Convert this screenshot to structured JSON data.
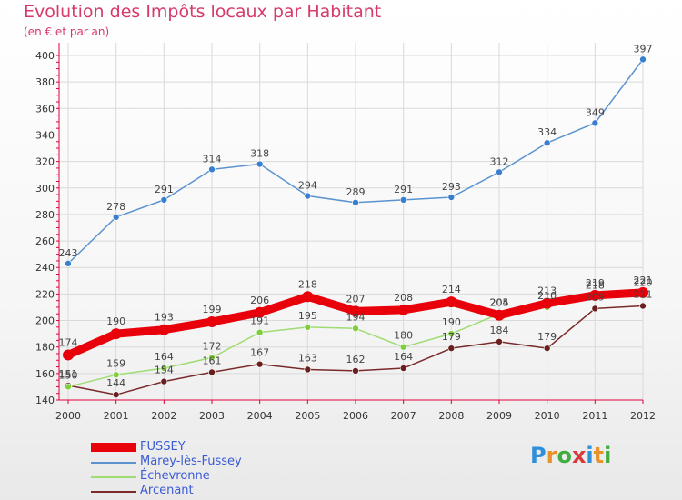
{
  "header": {
    "title": "Evolution des Impôts locaux par Habitant",
    "subtitle": "(en € et par an)"
  },
  "logo": {
    "text": "Proxiti",
    "colors": [
      "#2f8fd8",
      "#e8932a",
      "#3fae3f",
      "#d83a3a",
      "#2f8fd8",
      "#e8932a",
      "#3fae3f"
    ]
  },
  "colors": {
    "title": "#d63a6a",
    "axis": "#e0003a",
    "grid": "#d9d9d9",
    "legend_text": "#3a5bd4"
  },
  "chart_data": {
    "type": "line",
    "title": "Evolution des Impôts locaux par Habitant",
    "subtitle": "(en € et par an)",
    "x": [
      "2000",
      "2001",
      "2002",
      "2003",
      "2004",
      "2005",
      "2006",
      "2007",
      "2008",
      "2009",
      "2010",
      "2011",
      "2012"
    ],
    "ylim": [
      140,
      400
    ],
    "yticks": [
      "140",
      "160",
      "180",
      "200",
      "220",
      "240",
      "260",
      "280",
      "300",
      "320",
      "340",
      "360",
      "380",
      "400"
    ],
    "grid": true,
    "legend_position": "bottom-left",
    "series": [
      {
        "name": "FUSSEY",
        "color": "#e8000b",
        "values": [
          174,
          190,
          193,
          199,
          206,
          218,
          207,
          208,
          214,
          204,
          213,
          219,
          221
        ],
        "labels": [
          "174",
          "190",
          "193",
          "199",
          "206",
          "218",
          "207",
          "208",
          "214",
          "204",
          "213",
          "219",
          "221"
        ]
      },
      {
        "name": "Marey-lès-Fussey",
        "color": "#5b93cf",
        "values": [
          243,
          278,
          291,
          314,
          318,
          294,
          289,
          291,
          293,
          312,
          334,
          349,
          397
        ],
        "labels": [
          "243",
          "278",
          "291",
          "314",
          "318",
          "294",
          "289",
          "291",
          "293",
          "312",
          "334",
          "349",
          "397"
        ]
      },
      {
        "name": "Échevronne",
        "color": "#9fdc72",
        "values": [
          150,
          159,
          164,
          172,
          191,
          195,
          194,
          180,
          190,
          205,
          210,
          218,
          220
        ],
        "labels": [
          "150",
          "159",
          "164",
          "172",
          "191",
          "195",
          "194",
          "180",
          "190",
          "205",
          "210",
          "218",
          "220"
        ]
      },
      {
        "name": "Arcenant",
        "color": "#7a2a2a",
        "values": [
          151,
          144,
          154,
          161,
          167,
          163,
          162,
          164,
          179,
          184,
          179,
          209,
          211
        ],
        "labels": [
          "151",
          "144",
          "154",
          "161",
          "167",
          "163",
          "162",
          "164",
          "179",
          "184",
          "179",
          "209",
          "211"
        ]
      }
    ]
  }
}
